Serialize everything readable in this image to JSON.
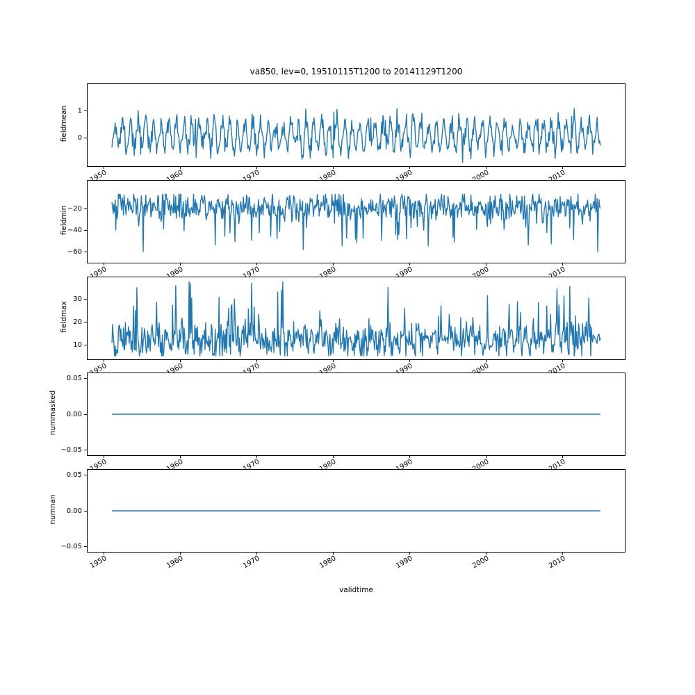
{
  "figure": {
    "title": "va850, lev=0, 19510115T1200 to 20141129T1200",
    "xlabel": "validtime",
    "background_color": "#ffffff",
    "line_color": "#1f77b4",
    "axes_edge_color": "#000000"
  },
  "chart_data": [
    {
      "type": "line",
      "title": "",
      "ylabel": "fieldmean",
      "xlabel": "",
      "xlim": [
        1947.85,
        2018.11
      ],
      "ylim": [
        -1.05,
        2.0
      ],
      "xticks": {
        "values": [
          1950,
          1960,
          1970,
          1980,
          1990,
          2000,
          2010
        ],
        "labels": [
          "1950",
          "1960",
          "1970",
          "1980",
          "1990",
          "2000",
          "2010"
        ]
      },
      "yticks": {
        "values": [
          0,
          1
        ],
        "labels": [
          "0",
          "1"
        ]
      },
      "grid": false,
      "legend": "none",
      "series": {
        "name": "fieldmean",
        "color": "#1f77b4",
        "x_data_range": [
          1951.04,
          2014.91
        ],
        "approx_value_range": [
          -0.9,
          1.85
        ],
        "description": "seasonal oscillation around 0 with occasional positive spikes up to ~1.85",
        "synth": {
          "seed": 42,
          "n": 767,
          "t0": 1951.04,
          "t1": 2014.91,
          "base": 0.08,
          "seasonal_amp": 0.5,
          "seasonal_amp_jitter": 0.5,
          "phase": -1.3,
          "noise": 0.18,
          "spike_prob": 0.012,
          "spike_sign": 1,
          "spike_min": 0.4,
          "spike_max": 1.0,
          "clip_min": -0.92,
          "clip_max": 1.85
        }
      }
    },
    {
      "type": "line",
      "title": "",
      "ylabel": "fieldmin",
      "xlabel": "",
      "xlim": [
        1947.85,
        2018.11
      ],
      "ylim": [
        -70,
        6
      ],
      "xticks": {
        "values": [
          1950,
          1960,
          1970,
          1980,
          1990,
          2000,
          2010
        ],
        "labels": [
          "1950",
          "1960",
          "1970",
          "1980",
          "1990",
          "2000",
          "2010"
        ]
      },
      "yticks": {
        "values": [
          -20,
          -40,
          -60
        ],
        "labels": [
          "−20",
          "−40",
          "−60"
        ]
      },
      "grid": false,
      "legend": "none",
      "series": {
        "name": "fieldmin",
        "color": "#1f77b4",
        "x_data_range": [
          1951.04,
          2014.91
        ],
        "approx_value_range": [
          -67,
          -7
        ],
        "description": "noisy band around -20 with frequent downward spikes to -50/-67",
        "synth": {
          "seed": 7,
          "n": 767,
          "t0": 1951.04,
          "t1": 2014.91,
          "base": -18,
          "seasonal_amp": 3,
          "seasonal_amp_jitter": 0.5,
          "phase": 1.8,
          "noise": 6,
          "spike_prob": 0.07,
          "spike_sign": -1,
          "spike_min": 5,
          "spike_max": 38,
          "clip_min": -67,
          "clip_max": -6.5
        }
      }
    },
    {
      "type": "line",
      "title": "",
      "ylabel": "fieldmax",
      "xlabel": "",
      "xlim": [
        1947.85,
        2018.11
      ],
      "ylim": [
        4,
        39.5
      ],
      "xticks": {
        "values": [
          1950,
          1960,
          1970,
          1980,
          1990,
          2000,
          2010
        ],
        "labels": [
          "1950",
          "1960",
          "1970",
          "1980",
          "1990",
          "2000",
          "2010"
        ]
      },
      "yticks": {
        "values": [
          30,
          20,
          10
        ],
        "labels": [
          "30",
          "20",
          "10"
        ]
      },
      "grid": false,
      "legend": "none",
      "series": {
        "name": "fieldmax",
        "color": "#1f77b4",
        "x_data_range": [
          1951.04,
          2014.91
        ],
        "approx_value_range": [
          5.5,
          37.5
        ],
        "description": "noisy band around 13 with frequent upward spikes to 28-37",
        "synth": {
          "seed": 13,
          "n": 767,
          "t0": 1951.04,
          "t1": 2014.91,
          "base": 12.5,
          "seasonal_amp": 2,
          "seasonal_amp_jitter": 0.5,
          "phase": 0.6,
          "noise": 3.4,
          "spike_prob": 0.09,
          "spike_sign": 1,
          "spike_min": 4,
          "spike_max": 23,
          "clip_min": 5.5,
          "clip_max": 37.5
        }
      }
    },
    {
      "type": "line",
      "title": "",
      "ylabel": "nummasked",
      "xlabel": "",
      "xlim": [
        1947.85,
        2018.11
      ],
      "ylim": [
        -0.0575,
        0.0575
      ],
      "xticks": {
        "values": [
          1950,
          1960,
          1970,
          1980,
          1990,
          2000,
          2010
        ],
        "labels": [
          "1950",
          "1960",
          "1970",
          "1980",
          "1990",
          "2000",
          "2010"
        ]
      },
      "yticks": {
        "values": [
          0.05,
          0,
          -0.05
        ],
        "labels": [
          "0.05",
          "0.00",
          "−0.05"
        ]
      },
      "grid": false,
      "legend": "none",
      "series": {
        "name": "nummasked",
        "color": "#1f77b4",
        "x_data_range": [
          1951.04,
          2014.91
        ],
        "constant_value": 0,
        "approx_value_range": [
          0,
          0
        ],
        "description": "constant zero line",
        "synth": {
          "seed": 1,
          "n": 767,
          "t0": 1951.04,
          "t1": 2014.91,
          "base": 0,
          "seasonal_amp": 0,
          "noise": 0
        }
      }
    },
    {
      "type": "line",
      "title": "",
      "ylabel": "numnan",
      "xlabel": "validtime",
      "xlim": [
        1947.85,
        2018.11
      ],
      "ylim": [
        -0.0575,
        0.0575
      ],
      "xticks": {
        "values": [
          1950,
          1960,
          1970,
          1980,
          1990,
          2000,
          2010
        ],
        "labels": [
          "1950",
          "1960",
          "1970",
          "1980",
          "1990",
          "2000",
          "2010"
        ]
      },
      "yticks": {
        "values": [
          0.05,
          0,
          -0.05
        ],
        "labels": [
          "0.05",
          "0.00",
          "−0.05"
        ]
      },
      "grid": false,
      "legend": "none",
      "series": {
        "name": "numnan",
        "color": "#1f77b4",
        "x_data_range": [
          1951.04,
          2014.91
        ],
        "constant_value": 0,
        "approx_value_range": [
          0,
          0
        ],
        "description": "constant zero line",
        "synth": {
          "seed": 2,
          "n": 767,
          "t0": 1951.04,
          "t1": 2014.91,
          "base": 0,
          "seasonal_amp": 0,
          "noise": 0
        }
      }
    }
  ]
}
